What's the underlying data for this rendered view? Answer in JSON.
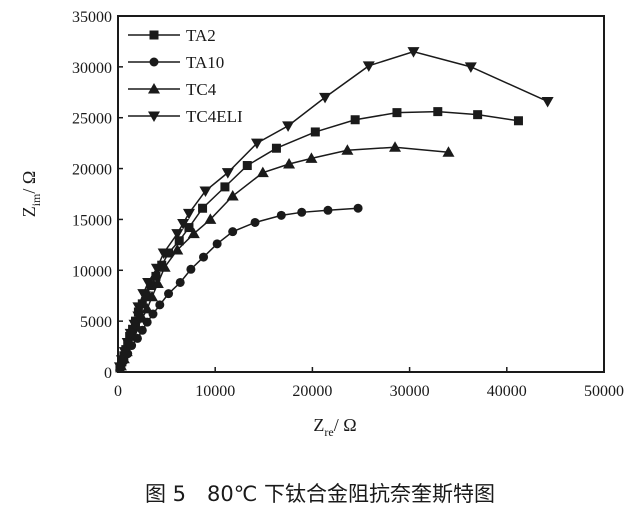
{
  "chart_data": {
    "type": "line",
    "xlabel": "Z",
    "xlabel_sub": "re",
    "xlabel_unit": "/ Ω",
    "ylabel": "Z",
    "ylabel_sub": "im",
    "ylabel_unit": "/ Ω",
    "xlim": [
      0,
      50000
    ],
    "ylim": [
      0,
      35000
    ],
    "xticks": [
      "0",
      "10000",
      "20000",
      "30000",
      "40000",
      "50000"
    ],
    "yticks": [
      "0",
      "5000",
      "10000",
      "15000",
      "20000",
      "25000",
      "30000",
      "35000"
    ],
    "grid": false,
    "legend_position": "top-left",
    "series": [
      {
        "name": "TA2",
        "marker": "square",
        "points": [
          [
            200,
            400
          ],
          [
            400,
            1000
          ],
          [
            600,
            1600
          ],
          [
            800,
            2200
          ],
          [
            1000,
            2900
          ],
          [
            1200,
            3500
          ],
          [
            1500,
            4200
          ],
          [
            1800,
            5000
          ],
          [
            2100,
            5900
          ],
          [
            2500,
            6700
          ],
          [
            2900,
            7500
          ],
          [
            3400,
            8500
          ],
          [
            3900,
            9400
          ],
          [
            4500,
            10500
          ],
          [
            5200,
            11700
          ],
          [
            6300,
            12900
          ],
          [
            7300,
            14200
          ],
          [
            8700,
            16100
          ],
          [
            11000,
            18200
          ],
          [
            13300,
            20300
          ],
          [
            16300,
            22000
          ],
          [
            20300,
            23600
          ],
          [
            24400,
            24800
          ],
          [
            28700,
            25500
          ],
          [
            32900,
            25600
          ],
          [
            37000,
            25300
          ],
          [
            41200,
            24700
          ]
        ]
      },
      {
        "name": "TA10",
        "marker": "circle",
        "points": [
          [
            300,
            500
          ],
          [
            600,
            1100
          ],
          [
            1000,
            1800
          ],
          [
            1400,
            2600
          ],
          [
            2000,
            3300
          ],
          [
            2500,
            4100
          ],
          [
            3000,
            4900
          ],
          [
            3600,
            5700
          ],
          [
            4300,
            6600
          ],
          [
            5200,
            7700
          ],
          [
            6400,
            8800
          ],
          [
            7500,
            10100
          ],
          [
            8800,
            11300
          ],
          [
            10200,
            12600
          ],
          [
            11800,
            13800
          ],
          [
            14100,
            14700
          ],
          [
            16800,
            15400
          ],
          [
            18900,
            15700
          ],
          [
            21600,
            15900
          ],
          [
            24700,
            16100
          ]
        ]
      },
      {
        "name": "TC4",
        "marker": "triangle-up",
        "points": [
          [
            300,
            600
          ],
          [
            600,
            1300
          ],
          [
            900,
            2000
          ],
          [
            1200,
            2800
          ],
          [
            1600,
            3600
          ],
          [
            2000,
            4400
          ],
          [
            2500,
            5300
          ],
          [
            3000,
            6200
          ],
          [
            3500,
            7400
          ],
          [
            4100,
            8700
          ],
          [
            4800,
            10300
          ],
          [
            6100,
            12000
          ],
          [
            7800,
            13600
          ],
          [
            9500,
            15000
          ],
          [
            11800,
            17300
          ],
          [
            14900,
            19600
          ],
          [
            17600,
            20450
          ],
          [
            19900,
            21000
          ],
          [
            23600,
            21800
          ],
          [
            28500,
            22100
          ],
          [
            34000,
            21600
          ]
        ]
      },
      {
        "name": "TC4ELI",
        "marker": "triangle-down",
        "points": [
          [
            200,
            500
          ],
          [
            400,
            1200
          ],
          [
            700,
            2000
          ],
          [
            1000,
            2900
          ],
          [
            1300,
            3800
          ],
          [
            1700,
            4700
          ],
          [
            2100,
            5500
          ],
          [
            2100,
            6400
          ],
          [
            2600,
            7700
          ],
          [
            3100,
            8800
          ],
          [
            4000,
            10200
          ],
          [
            4700,
            11700
          ],
          [
            6100,
            13600
          ],
          [
            6700,
            14600
          ],
          [
            7300,
            15600
          ],
          [
            9000,
            17800
          ],
          [
            11300,
            19600
          ],
          [
            14300,
            22500
          ],
          [
            17500,
            24200
          ],
          [
            21300,
            27000
          ],
          [
            25800,
            30100
          ],
          [
            30400,
            31500
          ],
          [
            36300,
            30000
          ],
          [
            44200,
            26600
          ]
        ]
      }
    ]
  },
  "caption": "图 5　80℃ 下钛合金阻抗奈奎斯特图",
  "colors": {
    "ink": "#1a1a1a",
    "background": "#ffffff"
  }
}
